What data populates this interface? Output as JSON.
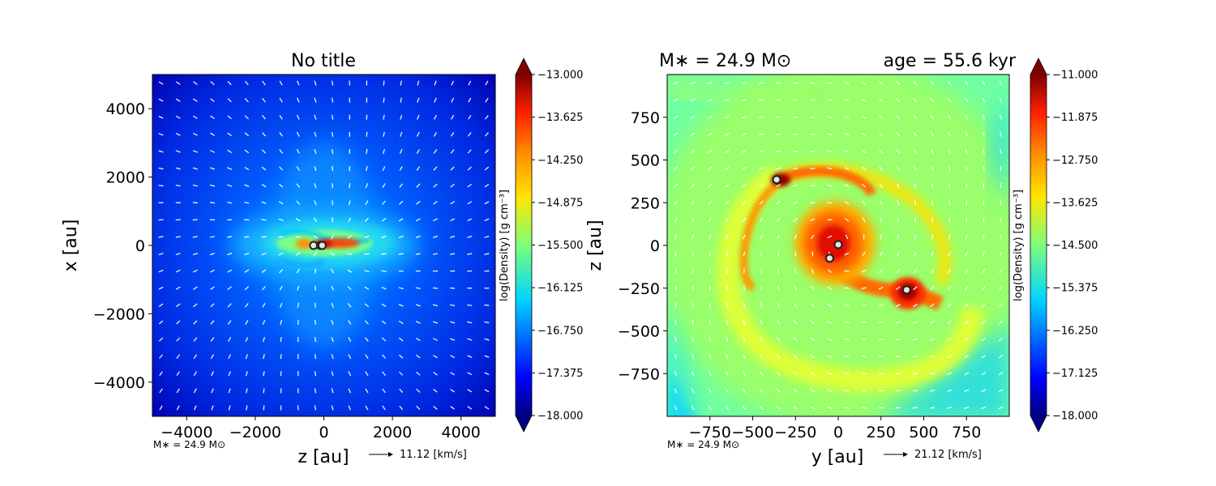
{
  "panels": [
    {
      "title": "No title",
      "xlabel": "z [au]",
      "ylabel": "x [au]",
      "xlim": [
        -5000,
        5000
      ],
      "ylim": [
        -5000,
        5000
      ],
      "xticks": [
        "−4000",
        "−2000",
        "0",
        "2000",
        "4000"
      ],
      "yticks": [
        "4000",
        "2000",
        "0",
        "−2000",
        "−4000"
      ],
      "mass_note": "M∗ = 24.9 M⊙",
      "arrow_key": "11.12 [km/s]"
    },
    {
      "title_left": "M∗ = 24.9 M⊙",
      "title_right": "age = 55.6 kyr",
      "xlabel": "y [au]",
      "ylabel": "z [au]",
      "xlim": [
        -1000,
        1000
      ],
      "ylim": [
        -1000,
        1000
      ],
      "xticks": [
        "−750",
        "−500",
        "−250",
        "0",
        "250",
        "500",
        "750"
      ],
      "yticks": [
        "750",
        "500",
        "250",
        "0",
        "−250",
        "−500",
        "−750"
      ],
      "mass_note": "M∗ = 24.9 M⊙",
      "arrow_key": "21.12 [km/s]"
    }
  ],
  "colorbars": [
    {
      "label": "log(Density) [g cm⁻³]",
      "ticks": [
        "−13.000",
        "−13.625",
        "−14.250",
        "−14.875",
        "−15.500",
        "−16.125",
        "−16.750",
        "−17.375",
        "−18.000"
      ]
    },
    {
      "label": "log(Density) [g cm⁻³]",
      "ticks": [
        "−11.000",
        "−11.875",
        "−12.750",
        "−13.625",
        "−14.500",
        "−15.375",
        "−16.250",
        "−17.125",
        "−18.000"
      ]
    }
  ],
  "colormap": "jet",
  "chart_data": [
    {
      "type": "heatmap",
      "title": "No title",
      "xlabel": "z [au]",
      "ylabel": "x [au]",
      "xlim": [
        -5000,
        5000
      ],
      "ylim": [
        -5000,
        5000
      ],
      "colorbar_range": [
        -18.0,
        -13.0
      ],
      "colorbar_label": "log(Density) [g cm⁻³]",
      "sink_particles": [
        {
          "x": -300,
          "y": 0
        },
        {
          "x": -100,
          "y": 0
        },
        {
          "x": -50,
          "y": 0
        }
      ],
      "velocity_reference": "11.12 [km/s]"
    },
    {
      "type": "heatmap",
      "title": "M∗ = 24.9 M⊙    age = 55.6 kyr",
      "xlabel": "y [au]",
      "ylabel": "z [au]",
      "xlim": [
        -1000,
        1000
      ],
      "ylim": [
        -1000,
        1000
      ],
      "colorbar_range": [
        -18.0,
        -11.0
      ],
      "colorbar_label": "log(Density) [g cm⁻³]",
      "sink_particles": [
        {
          "x": -360,
          "y": 385
        },
        {
          "x": -50,
          "y": -75
        },
        {
          "x": 0,
          "y": 5
        },
        {
          "x": 400,
          "y": -260
        }
      ],
      "velocity_reference": "21.12 [km/s]"
    }
  ]
}
